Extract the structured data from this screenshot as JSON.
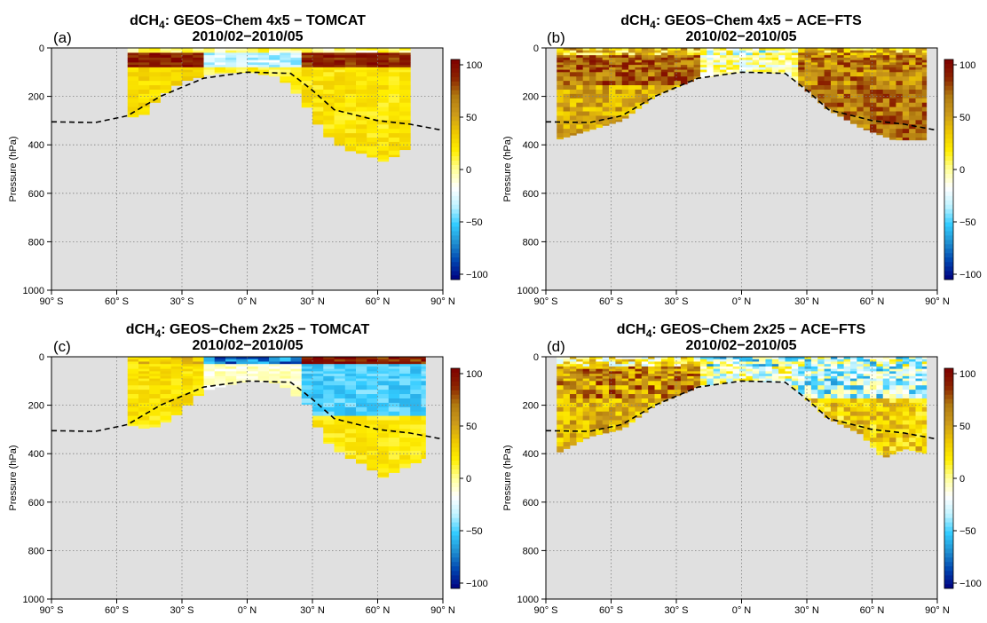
{
  "figure": {
    "common_xlabel": "",
    "colorbar_ticks": [
      "100",
      "50",
      "0",
      "−50",
      "−100"
    ],
    "colors": {
      "background": "#e0e0e0",
      "grid": "#808080",
      "tropopause": "#000000",
      "colormap": [
        "#00007f",
        "#0044b0",
        "#1f8fd0",
        "#33ccff",
        "#bff3ff",
        "#ffffff",
        "#ffff99",
        "#ffee00",
        "#eec800",
        "#cc9a1a",
        "#b07a10",
        "#8b2200",
        "#7f0000"
      ]
    }
  },
  "chart_data": [
    {
      "type": "heatmap",
      "panel_label": "(a)",
      "title_prefix": "dCH",
      "title_sub": "4",
      "title_suffix": ": GEOS−Chem 4x5 − TOMCAT",
      "subtitle": "2010/02−2010/05",
      "xlabel": "",
      "ylabel": "Pressure (hPa)",
      "x_ticks": [
        "90° S",
        "60° S",
        "30° S",
        "0° N",
        "30° N",
        "60° N",
        "90° N"
      ],
      "y_ticks": [
        "0",
        "200",
        "400",
        "600",
        "800",
        "1000"
      ],
      "xlim": [
        -90,
        90
      ],
      "ylim": [
        1000,
        0
      ],
      "colorbar_range": [
        -100,
        100
      ],
      "grid": true,
      "coverage_lat": [
        -55,
        75
      ],
      "tropopause_hPa": [
        [
          -90,
          305
        ],
        [
          -70,
          308
        ],
        [
          -55,
          280
        ],
        [
          -40,
          200
        ],
        [
          -20,
          125
        ],
        [
          0,
          100
        ],
        [
          20,
          105
        ],
        [
          30,
          175
        ],
        [
          40,
          255
        ],
        [
          60,
          300
        ],
        [
          75,
          315
        ],
        [
          90,
          340
        ]
      ],
      "bottom_hPa": [
        [
          -55,
          270
        ],
        [
          -50,
          300
        ],
        [
          -40,
          200
        ],
        [
          -30,
          140
        ],
        [
          -15,
          105
        ],
        [
          0,
          100
        ],
        [
          15,
          120
        ],
        [
          25,
          210
        ],
        [
          35,
          350
        ],
        [
          45,
          420
        ],
        [
          55,
          440
        ],
        [
          62,
          470
        ],
        [
          70,
          440
        ],
        [
          75,
          400
        ]
      ],
      "layers": [
        {
          "from": 0,
          "to": 25,
          "S": 2,
          "E": 3,
          "N": 2,
          "amp": 18
        },
        {
          "from": 25,
          "to": 85,
          "S": 90,
          "E": -30,
          "N": 85,
          "amp": 14
        },
        {
          "from": 85,
          "to": 1000,
          "S": 25,
          "E": 12,
          "N": 20,
          "amp": 10
        }
      ],
      "seed": 11
    },
    {
      "type": "heatmap",
      "panel_label": "(b)",
      "title_prefix": "dCH",
      "title_sub": "4",
      "title_suffix": ": GEOS−Chem 4x5 − ACE−FTS",
      "subtitle": "2010/02−2010/05",
      "xlabel": "",
      "ylabel": "Pressure (hPa)",
      "x_ticks": [
        "90° S",
        "60° S",
        "30° S",
        "0° N",
        "30° N",
        "60° N",
        "90° N"
      ],
      "y_ticks": [
        "0",
        "200",
        "400",
        "600",
        "800",
        "1000"
      ],
      "xlim": [
        -90,
        90
      ],
      "ylim": [
        1000,
        0
      ],
      "colorbar_range": [
        -100,
        100
      ],
      "grid": true,
      "coverage_lat": [
        -85,
        85
      ],
      "tropopause_hPa": [
        [
          -90,
          305
        ],
        [
          -70,
          308
        ],
        [
          -55,
          280
        ],
        [
          -40,
          200
        ],
        [
          -20,
          125
        ],
        [
          0,
          100
        ],
        [
          20,
          105
        ],
        [
          30,
          175
        ],
        [
          40,
          255
        ],
        [
          60,
          300
        ],
        [
          75,
          315
        ],
        [
          90,
          340
        ]
      ],
      "bottom_hPa": [
        [
          -85,
          380
        ],
        [
          -55,
          300
        ],
        [
          -40,
          200
        ],
        [
          -20,
          125
        ],
        [
          0,
          100
        ],
        [
          20,
          105
        ],
        [
          30,
          175
        ],
        [
          40,
          255
        ],
        [
          55,
          330
        ],
        [
          70,
          380
        ],
        [
          85,
          380
        ]
      ],
      "layers": [
        {
          "from": 0,
          "to": 30,
          "S": 35,
          "E": -10,
          "N": 40,
          "amp": 40
        },
        {
          "from": 30,
          "to": 160,
          "S": 70,
          "E": -5,
          "N": 60,
          "amp": 25
        },
        {
          "from": 160,
          "to": 1000,
          "S": 45,
          "E": 10,
          "N": 65,
          "amp": 22
        }
      ],
      "seed": 23
    },
    {
      "type": "heatmap",
      "panel_label": "(c)",
      "title_prefix": "dCH",
      "title_sub": "4",
      "title_suffix": ": GEOS−Chem 2x25 − TOMCAT",
      "subtitle": "2010/02−2010/05",
      "xlabel": "",
      "ylabel": "Pressure (hPa)",
      "x_ticks": [
        "90° S",
        "60° S",
        "30° S",
        "0° N",
        "30° N",
        "60° N",
        "90° N"
      ],
      "y_ticks": [
        "0",
        "200",
        "400",
        "600",
        "800",
        "1000"
      ],
      "xlim": [
        -90,
        90
      ],
      "ylim": [
        1000,
        0
      ],
      "colorbar_range": [
        -100,
        100
      ],
      "grid": true,
      "coverage_lat": [
        -55,
        82
      ],
      "tropopause_hPa": [
        [
          -90,
          305
        ],
        [
          -70,
          308
        ],
        [
          -55,
          280
        ],
        [
          -40,
          200
        ],
        [
          -20,
          125
        ],
        [
          0,
          100
        ],
        [
          20,
          105
        ],
        [
          30,
          175
        ],
        [
          40,
          255
        ],
        [
          60,
          300
        ],
        [
          75,
          315
        ],
        [
          90,
          340
        ]
      ],
      "bottom_hPa": [
        [
          -55,
          280
        ],
        [
          -45,
          300
        ],
        [
          -35,
          260
        ],
        [
          -20,
          140
        ],
        [
          0,
          100
        ],
        [
          15,
          110
        ],
        [
          28,
          200
        ],
        [
          35,
          340
        ],
        [
          45,
          410
        ],
        [
          55,
          450
        ],
        [
          62,
          500
        ],
        [
          72,
          460
        ],
        [
          82,
          420
        ]
      ],
      "layers": [
        {
          "from": 0,
          "to": 28,
          "S": 30,
          "E": -70,
          "N": 92,
          "amp": 22
        },
        {
          "from": 28,
          "to": 240,
          "S": 22,
          "E": -8,
          "N": -48,
          "amp": 10
        },
        {
          "from": 240,
          "to": 1000,
          "S": 18,
          "E": 10,
          "N": 18,
          "amp": 9
        }
      ],
      "seed": 37
    },
    {
      "type": "heatmap",
      "panel_label": "(d)",
      "title_prefix": "dCH",
      "title_sub": "4",
      "title_suffix": ": GEOS−Chem 2x25 − ACE−FTS",
      "subtitle": "2010/02−2010/05",
      "xlabel": "",
      "ylabel": "Pressure (hPa)",
      "x_ticks": [
        "90° S",
        "60° S",
        "30° S",
        "0° N",
        "30° N",
        "60° N",
        "90° N"
      ],
      "y_ticks": [
        "0",
        "200",
        "400",
        "600",
        "800",
        "1000"
      ],
      "xlim": [
        -90,
        90
      ],
      "ylim": [
        1000,
        0
      ],
      "colorbar_range": [
        -100,
        100
      ],
      "grid": true,
      "coverage_lat": [
        -85,
        85
      ],
      "tropopause_hPa": [
        [
          -90,
          305
        ],
        [
          -70,
          308
        ],
        [
          -55,
          280
        ],
        [
          -40,
          200
        ],
        [
          -20,
          125
        ],
        [
          0,
          100
        ],
        [
          20,
          105
        ],
        [
          30,
          175
        ],
        [
          40,
          255
        ],
        [
          60,
          300
        ],
        [
          75,
          315
        ],
        [
          90,
          340
        ]
      ],
      "bottom_hPa": [
        [
          -85,
          400
        ],
        [
          -70,
          330
        ],
        [
          -55,
          300
        ],
        [
          -40,
          200
        ],
        [
          -20,
          125
        ],
        [
          0,
          100
        ],
        [
          20,
          105
        ],
        [
          30,
          175
        ],
        [
          40,
          255
        ],
        [
          55,
          320
        ],
        [
          65,
          420
        ],
        [
          75,
          380
        ],
        [
          85,
          400
        ]
      ],
      "layers": [
        {
          "from": 0,
          "to": 40,
          "S": 10,
          "E": -25,
          "N": -20,
          "amp": 45
        },
        {
          "from": 40,
          "to": 180,
          "S": 55,
          "E": -10,
          "N": -30,
          "amp": 35
        },
        {
          "from": 180,
          "to": 1000,
          "S": 40,
          "E": 10,
          "N": 30,
          "amp": 25
        }
      ],
      "seed": 53
    }
  ]
}
